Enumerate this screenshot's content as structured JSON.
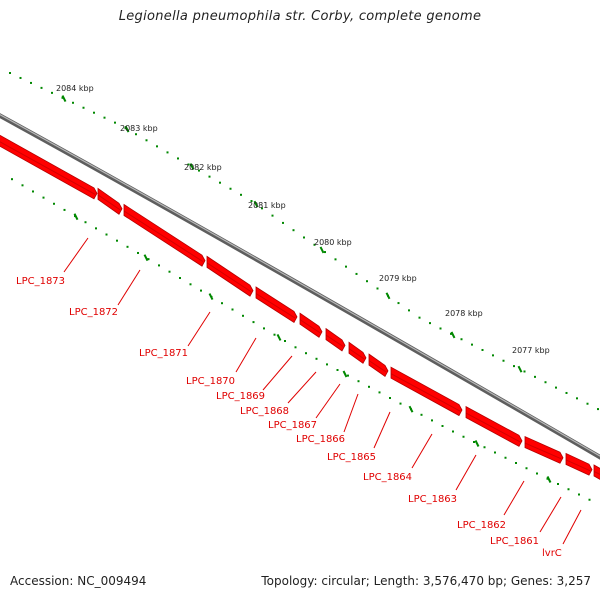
{
  "title": "Legionella pneumophila str. Corby, complete genome",
  "footer": {
    "accession": "Accession: NC_009494",
    "summary": "Topology: circular; Length: 3,576,470 bp; Genes: 3,257"
  },
  "colors": {
    "gene": "#ff0000",
    "gene_shade": "#b30000",
    "backbone": "#7a7a7a",
    "tick": "#008800",
    "label": "#e00000"
  },
  "ruler": {
    "unit": "kbp",
    "labels": [
      "2084 kbp",
      "2083 kbp",
      "2082 kbp",
      "2081 kbp",
      "2080 kbp",
      "2079 kbp",
      "2078 kbp",
      "2077 kbp"
    ]
  },
  "genes": [
    "LPC_1873",
    "LPC_1872",
    "LPC_1871",
    "LPC_1870",
    "LPC_1869",
    "LPC_1868",
    "LPC_1867",
    "LPC_1866",
    "LPC_1865",
    "LPC_1864",
    "LPC_1863",
    "LPC_1862",
    "LPC_1861",
    "lvrC"
  ]
}
